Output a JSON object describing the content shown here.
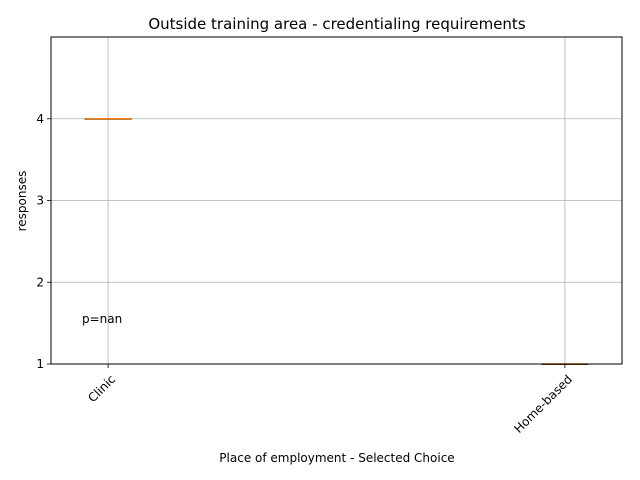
{
  "chart_data": {
    "type": "box",
    "title": "Outside training area - credentialing requirements",
    "xlabel": "Place of employment - Selected Choice",
    "ylabel": "responses",
    "categories": [
      "Clinic",
      "Home-based"
    ],
    "boxes": [
      {
        "category": "Clinic",
        "min": 4,
        "q1": 4,
        "median": 4,
        "q3": 4,
        "max": 4
      },
      {
        "category": "Home-based",
        "min": 1,
        "q1": 1,
        "median": 1,
        "q3": 1,
        "max": 1
      }
    ],
    "ylim": [
      1,
      5
    ],
    "yticks": [
      "1",
      "2",
      "3",
      "4"
    ],
    "grid": true,
    "annotation": "p=nan",
    "colors": {
      "median": "#ff7f0e",
      "box": "#000000",
      "grid": "#b0b0b0"
    }
  }
}
